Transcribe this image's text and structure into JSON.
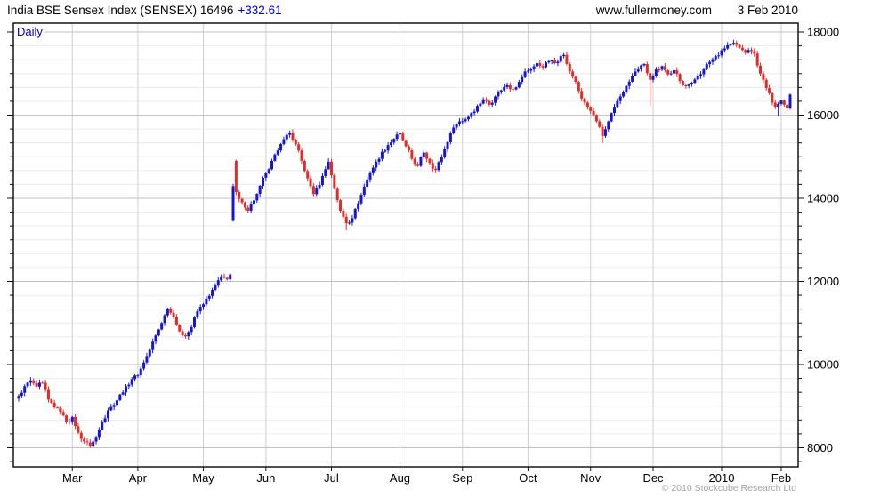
{
  "header": {
    "title": "India BSE Sensex Index (SENSEX) 16496",
    "change": "+332.61",
    "website": "www.fullermoney.com",
    "date": "3 Feb 2010"
  },
  "footer": {
    "copyright": "© 2010 Stockcube Research Ltd"
  },
  "chart_data": {
    "type": "candlestick",
    "title": "India BSE Sensex Index (SENSEX)",
    "timeframe": "Daily",
    "last_price": 16496,
    "change": "+332.61",
    "as_of": "3 Feb 2010",
    "colors": {
      "up": "#1616d2",
      "down": "#e42b28",
      "accent_text": "#0000cc",
      "grid_major": "#c2c2c2",
      "grid_minor": "#ececec",
      "grid_month": "#cfcfcf",
      "axis": "#151515",
      "label": "#000000"
    },
    "y_axis": {
      "min": 7540,
      "max": 18214,
      "ticks": [
        8000,
        10000,
        12000,
        14000,
        16000,
        18000
      ],
      "tick_interval": 2000,
      "minor_intervals_per_major": 6
    },
    "x_axis": {
      "unit": "trading_day_index",
      "num_days": 260,
      "ticks": [
        {
          "label": "Mar",
          "day": 18
        },
        {
          "label": "Apr",
          "day": 40
        },
        {
          "label": "May",
          "day": 62
        },
        {
          "label": "Jun",
          "day": 83
        },
        {
          "label": "Jul",
          "day": 105
        },
        {
          "label": "Aug",
          "day": 128
        },
        {
          "label": "Sep",
          "day": 149
        },
        {
          "label": "Oct",
          "day": 171
        },
        {
          "label": "Nov",
          "day": 192
        },
        {
          "label": "Dec",
          "day": 213
        },
        {
          "label": "2010",
          "day": 236
        },
        {
          "label": "Feb",
          "day": 256
        }
      ]
    },
    "close_path": [
      [
        0,
        9250
      ],
      [
        2,
        9480
      ],
      [
        4,
        9620
      ],
      [
        6,
        9470
      ],
      [
        8,
        9560
      ],
      [
        10,
        9160
      ],
      [
        12,
        8970
      ],
      [
        14,
        8860
      ],
      [
        16,
        8620
      ],
      [
        18,
        8740
      ],
      [
        20,
        8360
      ],
      [
        22,
        8150
      ],
      [
        24,
        8030
      ],
      [
        26,
        8260
      ],
      [
        28,
        8620
      ],
      [
        30,
        8900
      ],
      [
        32,
        9030
      ],
      [
        34,
        9280
      ],
      [
        36,
        9480
      ],
      [
        38,
        9650
      ],
      [
        40,
        9740
      ],
      [
        42,
        10050
      ],
      [
        44,
        10350
      ],
      [
        46,
        10700
      ],
      [
        48,
        11000
      ],
      [
        50,
        11350
      ],
      [
        52,
        11150
      ],
      [
        54,
        10800
      ],
      [
        56,
        10680
      ],
      [
        58,
        10900
      ],
      [
        60,
        11280
      ],
      [
        62,
        11450
      ],
      [
        64,
        11650
      ],
      [
        66,
        11900
      ],
      [
        68,
        12120
      ],
      [
        70,
        12050
      ],
      [
        71,
        12170
      ],
      [
        72,
        14290
      ],
      [
        73,
        14150
      ],
      [
        75,
        13900
      ],
      [
        77,
        13700
      ],
      [
        79,
        13950
      ],
      [
        81,
        14300
      ],
      [
        83,
        14600
      ],
      [
        85,
        14900
      ],
      [
        87,
        15150
      ],
      [
        89,
        15420
      ],
      [
        91,
        15580
      ],
      [
        93,
        15300
      ],
      [
        95,
        14900
      ],
      [
        97,
        14480
      ],
      [
        99,
        14100
      ],
      [
        101,
        14320
      ],
      [
        103,
        14700
      ],
      [
        104,
        14880
      ],
      [
        106,
        14250
      ],
      [
        108,
        13700
      ],
      [
        110,
        13400
      ],
      [
        112,
        13520
      ],
      [
        114,
        13880
      ],
      [
        116,
        14280
      ],
      [
        118,
        14620
      ],
      [
        120,
        14880
      ],
      [
        122,
        15120
      ],
      [
        124,
        15280
      ],
      [
        126,
        15430
      ],
      [
        128,
        15560
      ],
      [
        130,
        15250
      ],
      [
        132,
        14950
      ],
      [
        134,
        14780
      ],
      [
        136,
        15100
      ],
      [
        138,
        14850
      ],
      [
        140,
        14680
      ],
      [
        142,
        15000
      ],
      [
        144,
        15350
      ],
      [
        146,
        15700
      ],
      [
        148,
        15850
      ],
      [
        150,
        15900
      ],
      [
        152,
        16050
      ],
      [
        154,
        16220
      ],
      [
        156,
        16380
      ],
      [
        158,
        16250
      ],
      [
        160,
        16450
      ],
      [
        162,
        16600
      ],
      [
        164,
        16720
      ],
      [
        166,
        16620
      ],
      [
        168,
        16800
      ],
      [
        170,
        17050
      ],
      [
        172,
        17100
      ],
      [
        174,
        17250
      ],
      [
        176,
        17150
      ],
      [
        178,
        17300
      ],
      [
        180,
        17250
      ],
      [
        182,
        17420
      ],
      [
        183,
        17450
      ],
      [
        185,
        17050
      ],
      [
        187,
        16800
      ],
      [
        189,
        16400
      ],
      [
        191,
        16200
      ],
      [
        192,
        16100
      ],
      [
        194,
        15850
      ],
      [
        196,
        15500
      ],
      [
        198,
        15850
      ],
      [
        200,
        16200
      ],
      [
        202,
        16450
      ],
      [
        204,
        16700
      ],
      [
        206,
        16950
      ],
      [
        208,
        17100
      ],
      [
        210,
        17230
      ],
      [
        212,
        16850
      ],
      [
        214,
        17100
      ],
      [
        216,
        17180
      ],
      [
        218,
        16980
      ],
      [
        220,
        17080
      ],
      [
        222,
        16820
      ],
      [
        224,
        16700
      ],
      [
        226,
        16780
      ],
      [
        228,
        16950
      ],
      [
        230,
        17100
      ],
      [
        232,
        17280
      ],
      [
        234,
        17420
      ],
      [
        236,
        17560
      ],
      [
        238,
        17680
      ],
      [
        240,
        17740
      ],
      [
        242,
        17620
      ],
      [
        244,
        17500
      ],
      [
        246,
        17540
      ],
      [
        247,
        17480
      ],
      [
        249,
        17000
      ],
      [
        251,
        16650
      ],
      [
        253,
        16300
      ],
      [
        254,
        16200
      ],
      [
        256,
        16350
      ],
      [
        257,
        16250
      ],
      [
        258,
        16160
      ],
      [
        259,
        16496
      ]
    ],
    "bar_overrides": {
      "72": {
        "open": 13480,
        "low": 13440
      },
      "73": {
        "open": 14900,
        "high": 14930
      },
      "110": {
        "low": 13230
      },
      "183": {
        "high": 17493
      },
      "196": {
        "low": 15330
      },
      "212": {
        "low": 16210
      },
      "255": {
        "low": 15982
      }
    }
  }
}
